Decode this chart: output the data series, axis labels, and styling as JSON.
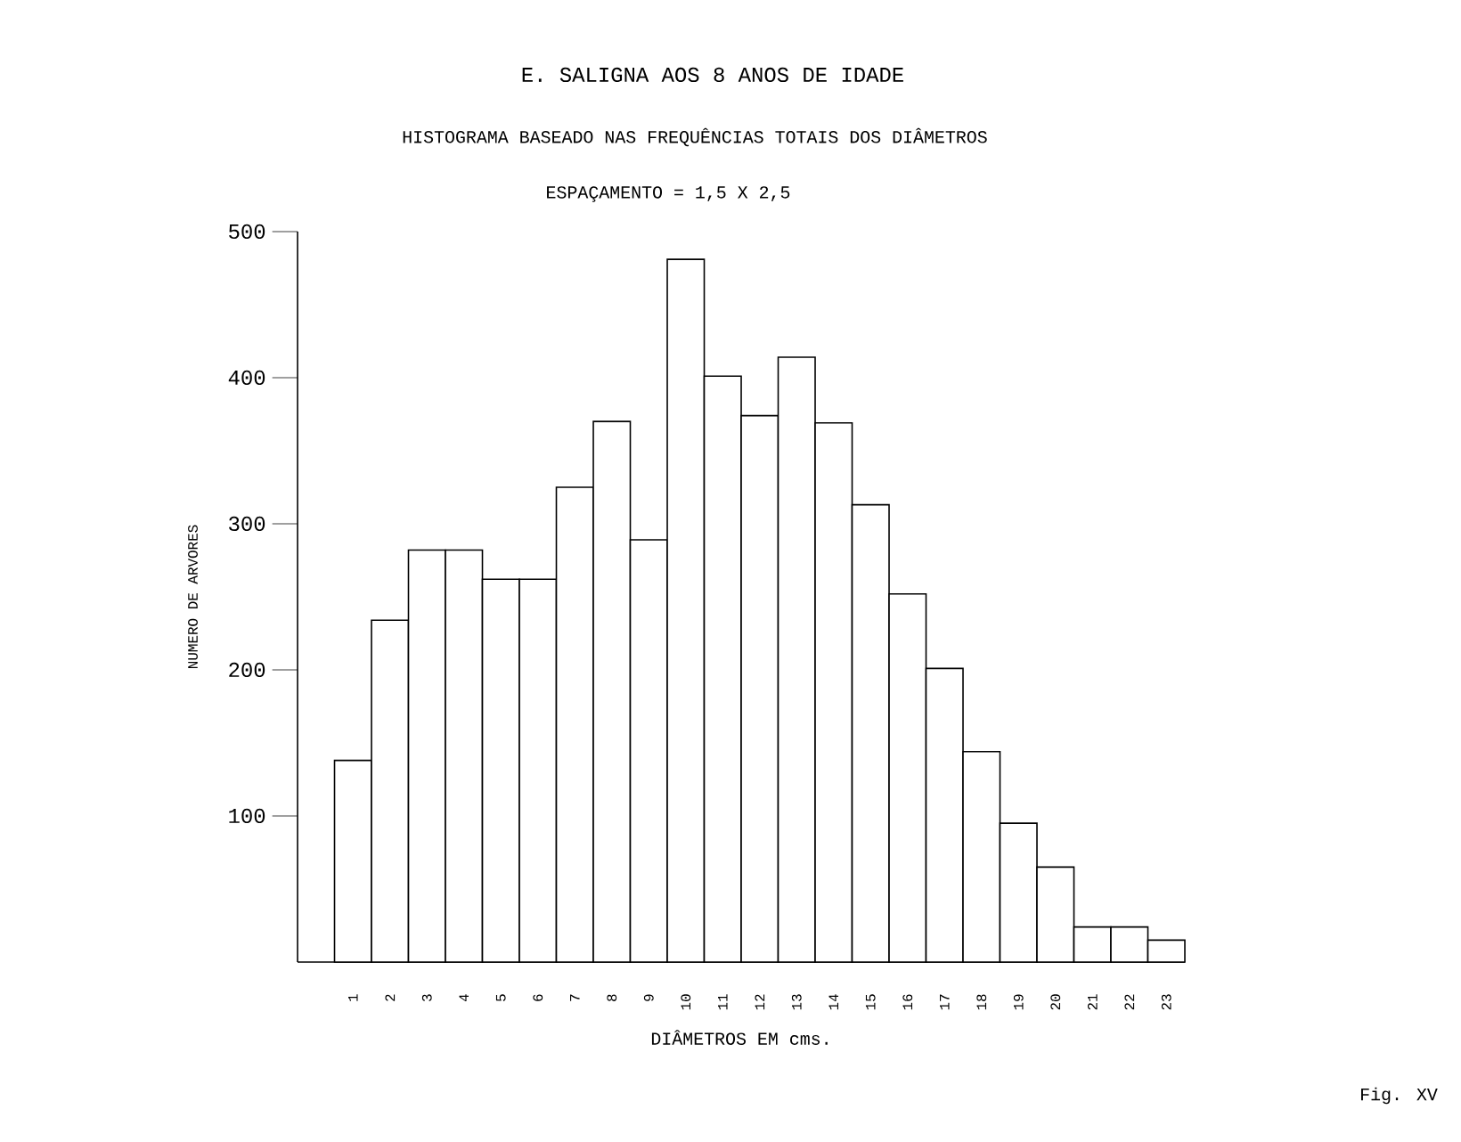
{
  "chart_data": {
    "type": "bar",
    "title": "E. SALIGNA AOS 8 ANOS DE IDADE",
    "subtitle": "HISTOGRAMA BASEADO NAS FREQUÊNCIAS TOTAIS DOS DIÂMETROS",
    "annotations": [
      "ESPAÇAMENTO = 1,5 X 2,5",
      "Fig. XV"
    ],
    "xlabel": "DIÂMETROS EM cms.",
    "ylabel": "NUMERO DE ARVORES",
    "categories": [
      "1",
      "2",
      "3",
      "4",
      "5",
      "6",
      "7",
      "8",
      "9",
      "10",
      "11",
      "12",
      "13",
      "14",
      "15",
      "16",
      "17",
      "18",
      "19",
      "20",
      "21",
      "22",
      "23"
    ],
    "values": [
      138,
      234,
      282,
      282,
      262,
      262,
      325,
      370,
      289,
      481,
      401,
      374,
      414,
      369,
      313,
      252,
      201,
      144,
      95,
      65,
      24,
      24,
      15
    ],
    "color": "#ffffff",
    "ylim": [
      0,
      500
    ],
    "yticks": [
      100,
      200,
      300,
      400,
      500
    ]
  }
}
